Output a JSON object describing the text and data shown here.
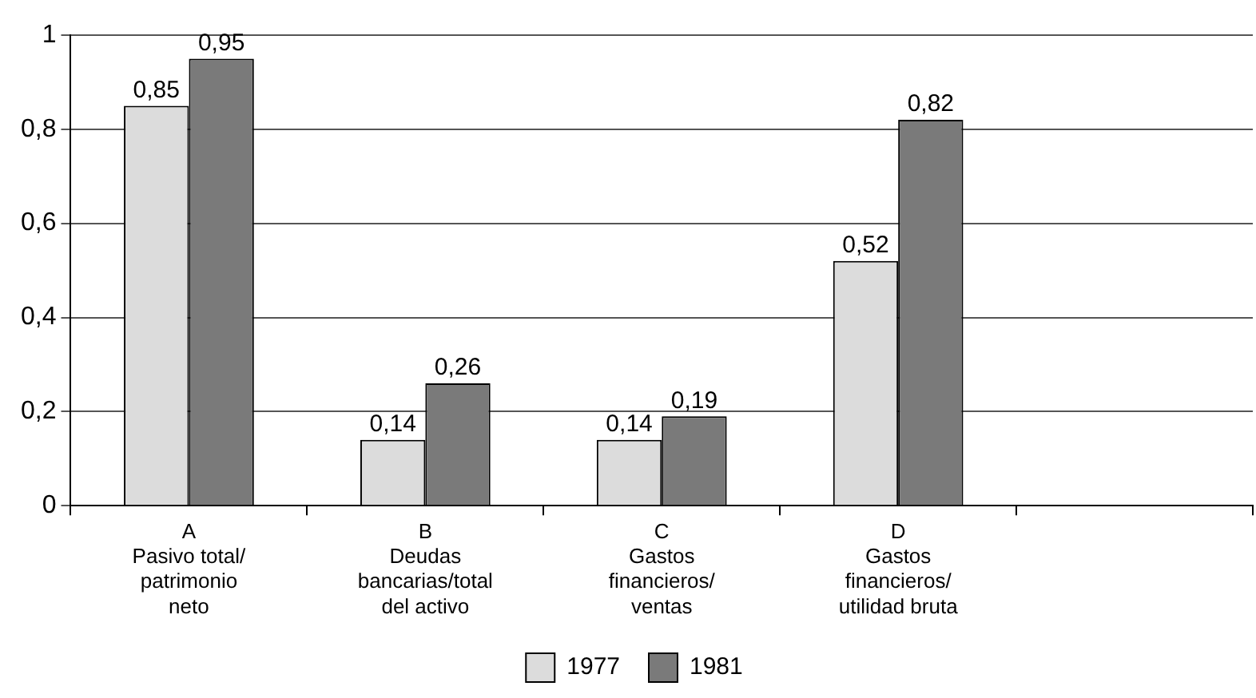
{
  "chart_data": {
    "type": "bar",
    "categories": [
      "A\nPasivo total/\npatrimonio\nneto",
      "B\nDeudas\nbancarias/total\ndel activo",
      "C\nGastos\nfinancieros/\nventas",
      "D\nGastos\nfinancieros/\nutilidad bruta",
      null
    ],
    "series": [
      {
        "name": "1977",
        "color": "#dcdcdc",
        "values": [
          0.85,
          0.14,
          0.14,
          0.52,
          null
        ],
        "value_labels": [
          "0,85",
          "0,14",
          "0,14",
          "0,52",
          null
        ]
      },
      {
        "name": "1981",
        "color": "#7a7a7a",
        "values": [
          0.95,
          0.26,
          0.19,
          0.82,
          null
        ],
        "value_labels": [
          "0,95",
          "0,26",
          "0,19",
          "0,82",
          null
        ]
      }
    ],
    "ylim": [
      0,
      1
    ],
    "yticks": [
      0,
      {
        "value": 0.2,
        "label": "0,2"
      },
      {
        "value": 0.4,
        "label": "0,4"
      },
      {
        "value": 0.6,
        "label": "0,6"
      },
      {
        "value": 0.8,
        "label": "0,8"
      },
      1
    ],
    "grid": "y",
    "legend": "bottom"
  }
}
